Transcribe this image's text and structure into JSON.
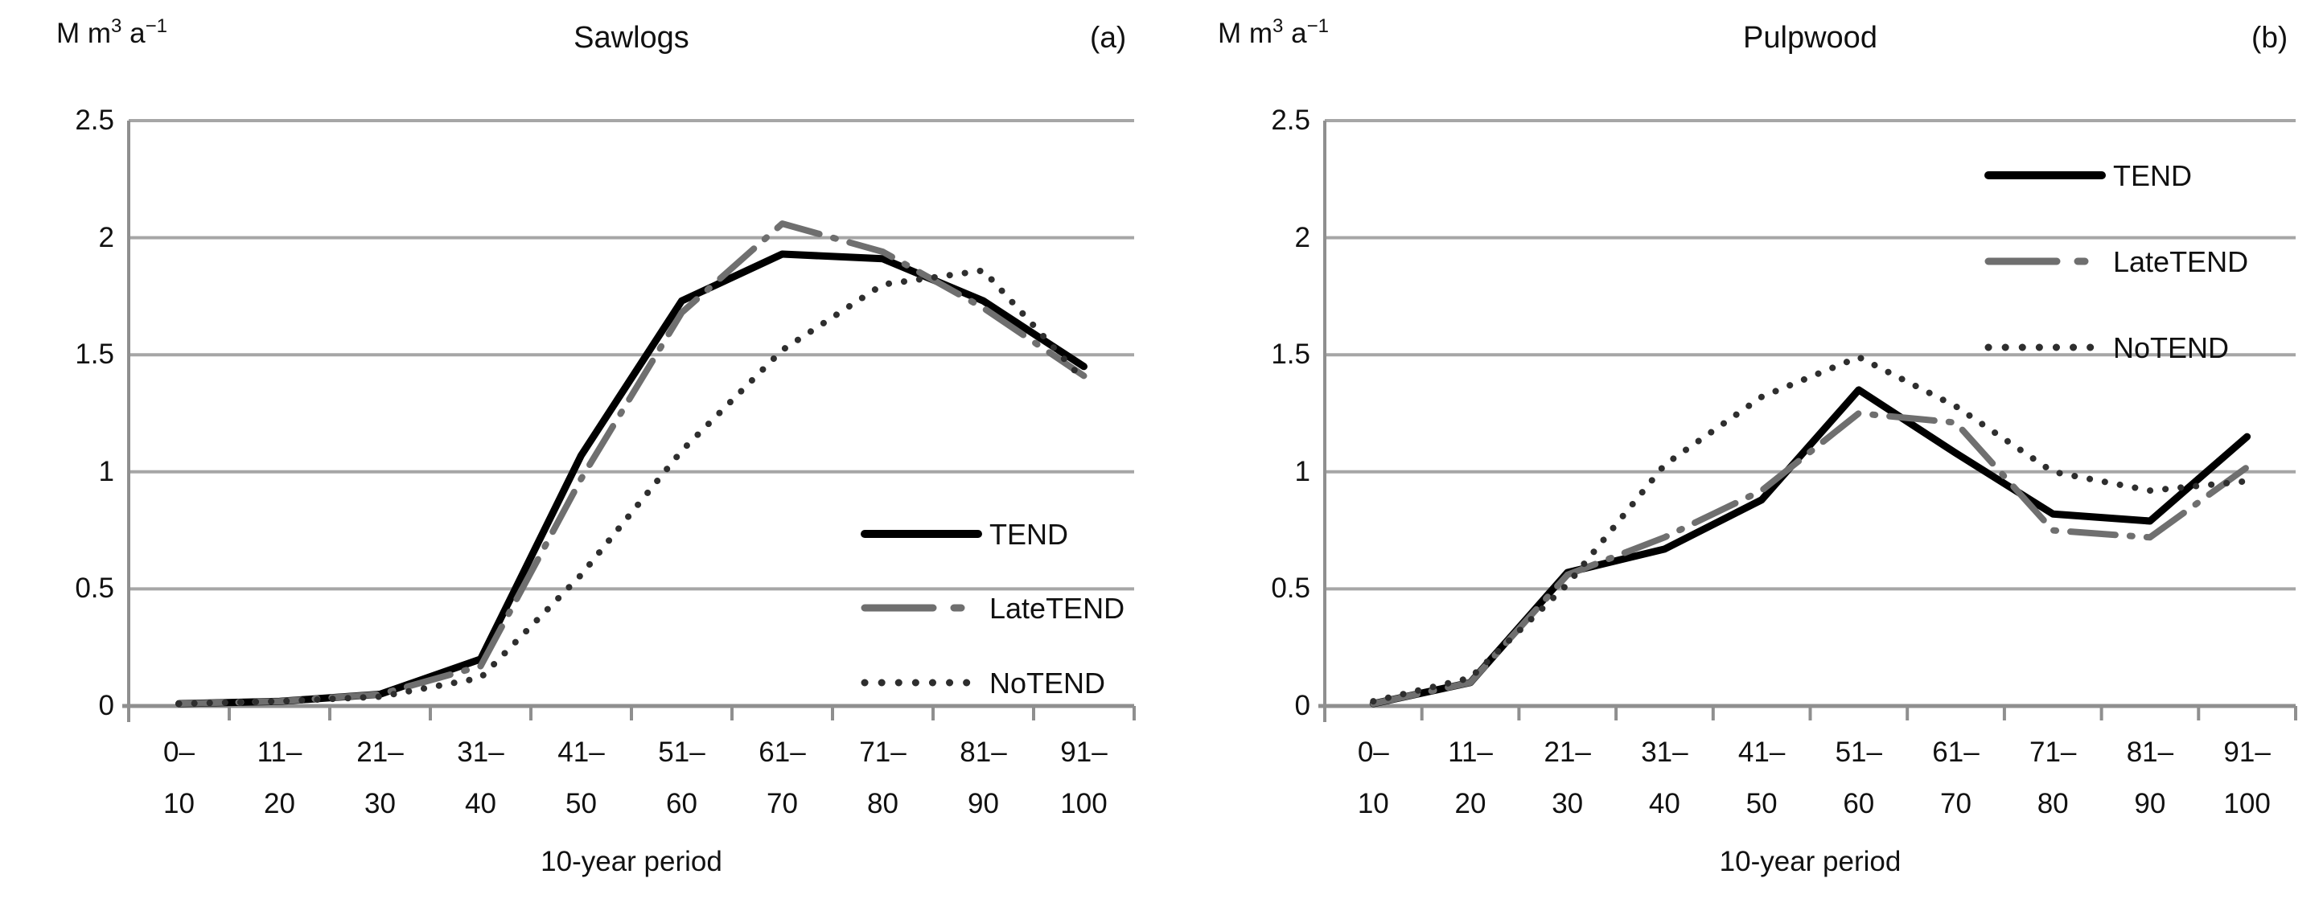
{
  "figure": {
    "unit_label": {
      "base1": "M m",
      "sup1": "3",
      "base2": " a",
      "sup2": "−1"
    },
    "x_axis_label": "10-year period",
    "y_tick_labels": [
      "2.5",
      "2",
      "1.5",
      "1",
      "0.5",
      "0"
    ],
    "x_tick_labels_line1": [
      "0–",
      "11–",
      "21–",
      "31–",
      "41–",
      "51–",
      "61–",
      "71–",
      "81–",
      "91–"
    ],
    "x_tick_labels_line2": [
      "10",
      "20",
      "30",
      "40",
      "50",
      "60",
      "70",
      "80",
      "90",
      "100"
    ],
    "legend_labels": [
      "TEND",
      "LateTEND",
      "NoTEND"
    ],
    "colors": {
      "tend": "#000000",
      "latetend": "#6f6f6f",
      "notend": "#2e2e2e",
      "gridline": "#a6a6a6",
      "axis": "#8f8f8f",
      "text": "#111111"
    }
  },
  "chart_data": [
    {
      "type": "line",
      "panel_label": "(a)",
      "title": "Sawlogs",
      "ylabel": "M m3 a−1",
      "xlabel": "10-year period",
      "ylim": [
        0,
        2.5
      ],
      "ytick_step": 0.5,
      "grid": true,
      "legend_position": "lower-right",
      "categories": [
        "0–10",
        "11–20",
        "21–30",
        "31–40",
        "41–50",
        "51–60",
        "61–70",
        "71–80",
        "81–90",
        "91–100"
      ],
      "series": [
        {
          "name": "TEND",
          "line_style": "solid",
          "values": [
            0.01,
            0.02,
            0.05,
            0.2,
            1.07,
            1.73,
            1.93,
            1.91,
            1.73,
            1.45
          ]
        },
        {
          "name": "LateTEND",
          "line_style": "long-dash-dot",
          "values": [
            0.01,
            0.02,
            0.05,
            0.17,
            0.97,
            1.68,
            2.06,
            1.94,
            1.7,
            1.41
          ]
        },
        {
          "name": "NoTEND",
          "line_style": "dotted",
          "values": [
            0.01,
            0.02,
            0.04,
            0.12,
            0.56,
            1.09,
            1.52,
            1.8,
            1.86,
            1.39
          ]
        }
      ]
    },
    {
      "type": "line",
      "panel_label": "(b)",
      "title": "Pulpwood",
      "ylabel": "M m3 a−1",
      "xlabel": "10-year period",
      "ylim": [
        0,
        2.5
      ],
      "ytick_step": 0.5,
      "grid": true,
      "legend_position": "upper-right",
      "categories": [
        "0–10",
        "11–20",
        "21–30",
        "31–40",
        "41–50",
        "51–60",
        "61–70",
        "71–80",
        "81–90",
        "91–100"
      ],
      "series": [
        {
          "name": "TEND",
          "line_style": "solid",
          "values": [
            0.01,
            0.1,
            0.57,
            0.67,
            0.88,
            1.35,
            1.08,
            0.82,
            0.79,
            1.15
          ]
        },
        {
          "name": "LateTEND",
          "line_style": "long-dash-dot",
          "values": [
            0.01,
            0.1,
            0.56,
            0.72,
            0.92,
            1.25,
            1.21,
            0.75,
            0.72,
            1.02
          ]
        },
        {
          "name": "NoTEND",
          "line_style": "dotted",
          "values": [
            0.02,
            0.12,
            0.52,
            1.03,
            1.32,
            1.49,
            1.28,
            1.0,
            0.92,
            0.96
          ]
        }
      ]
    }
  ]
}
